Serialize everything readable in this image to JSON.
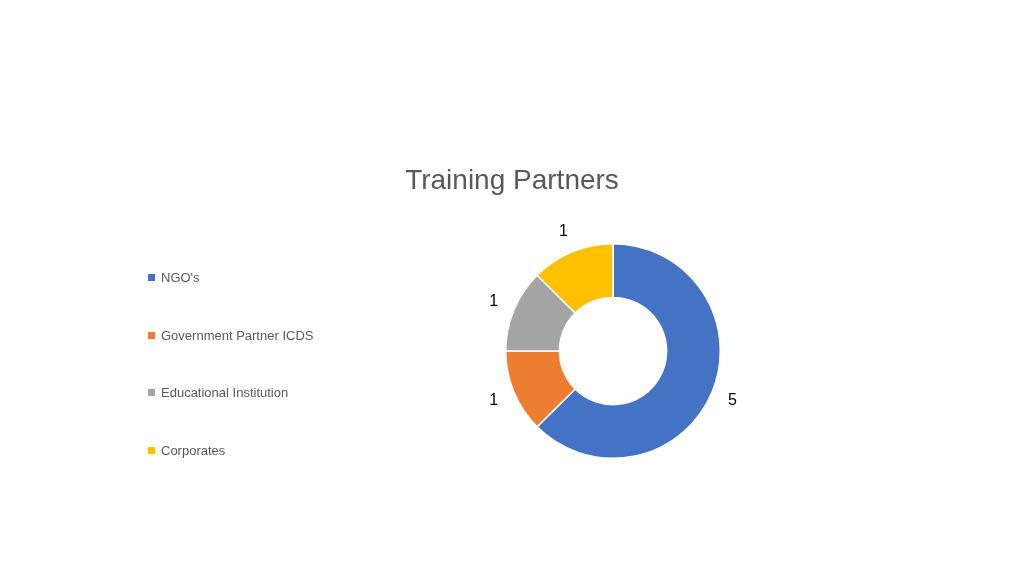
{
  "chart_data": {
    "type": "donut",
    "title": "Training Partners",
    "categories": [
      "NGO's",
      "Government Partner ICDS",
      "Educational Institution",
      "Corporates"
    ],
    "values": [
      5,
      1,
      1,
      1
    ],
    "colors": [
      "#4472c4",
      "#ed7d31",
      "#a5a5a5",
      "#ffc000"
    ],
    "data_labels": true,
    "legend": "left"
  }
}
